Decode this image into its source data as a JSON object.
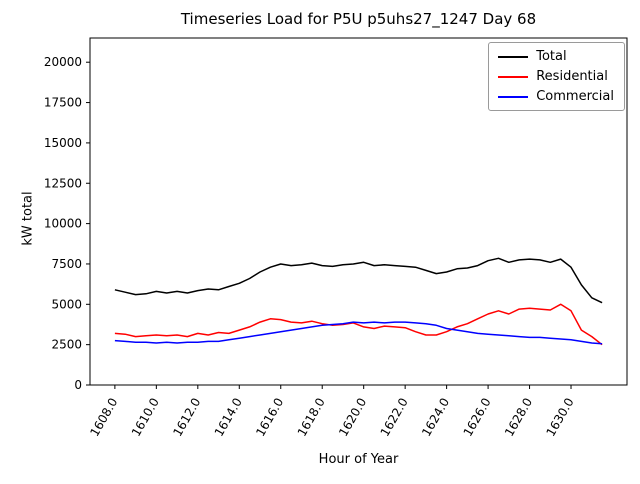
{
  "title": "Timeseries Load for P5U p5uhs27_1247  Day 68",
  "chart_data": {
    "type": "line",
    "title": "Timeseries Load for P5U p5uhs27_1247  Day 68",
    "xlabel": "Hour of Year",
    "ylabel": "kW total",
    "xlim": [
      1606.8,
      1632.7
    ],
    "ylim": [
      0,
      21500
    ],
    "grid": false,
    "legend_position": "upper right",
    "xticks": [
      1608,
      1610,
      1612,
      1614,
      1616,
      1618,
      1620,
      1622,
      1624,
      1626,
      1628,
      1630
    ],
    "xtick_labels": [
      "1608.0",
      "1610.0",
      "1612.0",
      "1614.0",
      "1616.0",
      "1618.0",
      "1620.0",
      "1622.0",
      "1624.0",
      "1626.0",
      "1628.0",
      "1630.0"
    ],
    "yticks": [
      0,
      2500,
      5000,
      7500,
      10000,
      12500,
      15000,
      17500,
      20000
    ],
    "ytick_labels": [
      "0",
      "2500",
      "5000",
      "7500",
      "10000",
      "12500",
      "15000",
      "17500",
      "20000"
    ],
    "x": [
      1608,
      1608.5,
      1609,
      1609.5,
      1610,
      1610.5,
      1611,
      1611.5,
      1612,
      1612.5,
      1613,
      1613.5,
      1614,
      1614.5,
      1615,
      1615.5,
      1616,
      1616.5,
      1617,
      1617.5,
      1618,
      1618.5,
      1619,
      1619.5,
      1620,
      1620.5,
      1621,
      1621.5,
      1622,
      1622.5,
      1623,
      1623.5,
      1624,
      1624.5,
      1625,
      1625.5,
      1626,
      1626.5,
      1627,
      1627.5,
      1628,
      1628.5,
      1629,
      1629.5,
      1630,
      1630.5,
      1631,
      1631.5
    ],
    "series": [
      {
        "name": "Total",
        "color": "#000000",
        "values": [
          5900,
          5750,
          5600,
          5650,
          5800,
          5700,
          5800,
          5700,
          5850,
          5950,
          5900,
          6100,
          6300,
          6600,
          7000,
          7300,
          7500,
          7400,
          7450,
          7550,
          7400,
          7350,
          7450,
          7500,
          7600,
          7400,
          7450,
          7400,
          7350,
          7300,
          7100,
          6900,
          7000,
          7200,
          7250,
          7400,
          7700,
          7850,
          7600,
          7750,
          7800,
          7750,
          7600,
          7800,
          7300,
          6200,
          5400,
          5100
        ]
      },
      {
        "name": "Residential",
        "color": "#ff0000",
        "values": [
          3200,
          3150,
          3000,
          3050,
          3100,
          3050,
          3100,
          3000,
          3200,
          3100,
          3250,
          3200,
          3400,
          3600,
          3900,
          4100,
          4050,
          3900,
          3850,
          3950,
          3800,
          3700,
          3750,
          3850,
          3600,
          3500,
          3650,
          3600,
          3550,
          3300,
          3100,
          3100,
          3300,
          3600,
          3800,
          4100,
          4400,
          4600,
          4400,
          4700,
          4750,
          4700,
          4650,
          5000,
          4600,
          3400,
          3000,
          2500
        ]
      },
      {
        "name": "Commercial",
        "color": "#0000ff",
        "values": [
          2750,
          2700,
          2650,
          2650,
          2600,
          2650,
          2600,
          2650,
          2650,
          2700,
          2700,
          2800,
          2900,
          3000,
          3100,
          3200,
          3300,
          3400,
          3500,
          3600,
          3700,
          3750,
          3800,
          3900,
          3850,
          3900,
          3850,
          3900,
          3900,
          3850,
          3800,
          3700,
          3500,
          3400,
          3300,
          3200,
          3150,
          3100,
          3050,
          3000,
          2950,
          2950,
          2900,
          2850,
          2800,
          2700,
          2600,
          2550
        ]
      }
    ]
  }
}
